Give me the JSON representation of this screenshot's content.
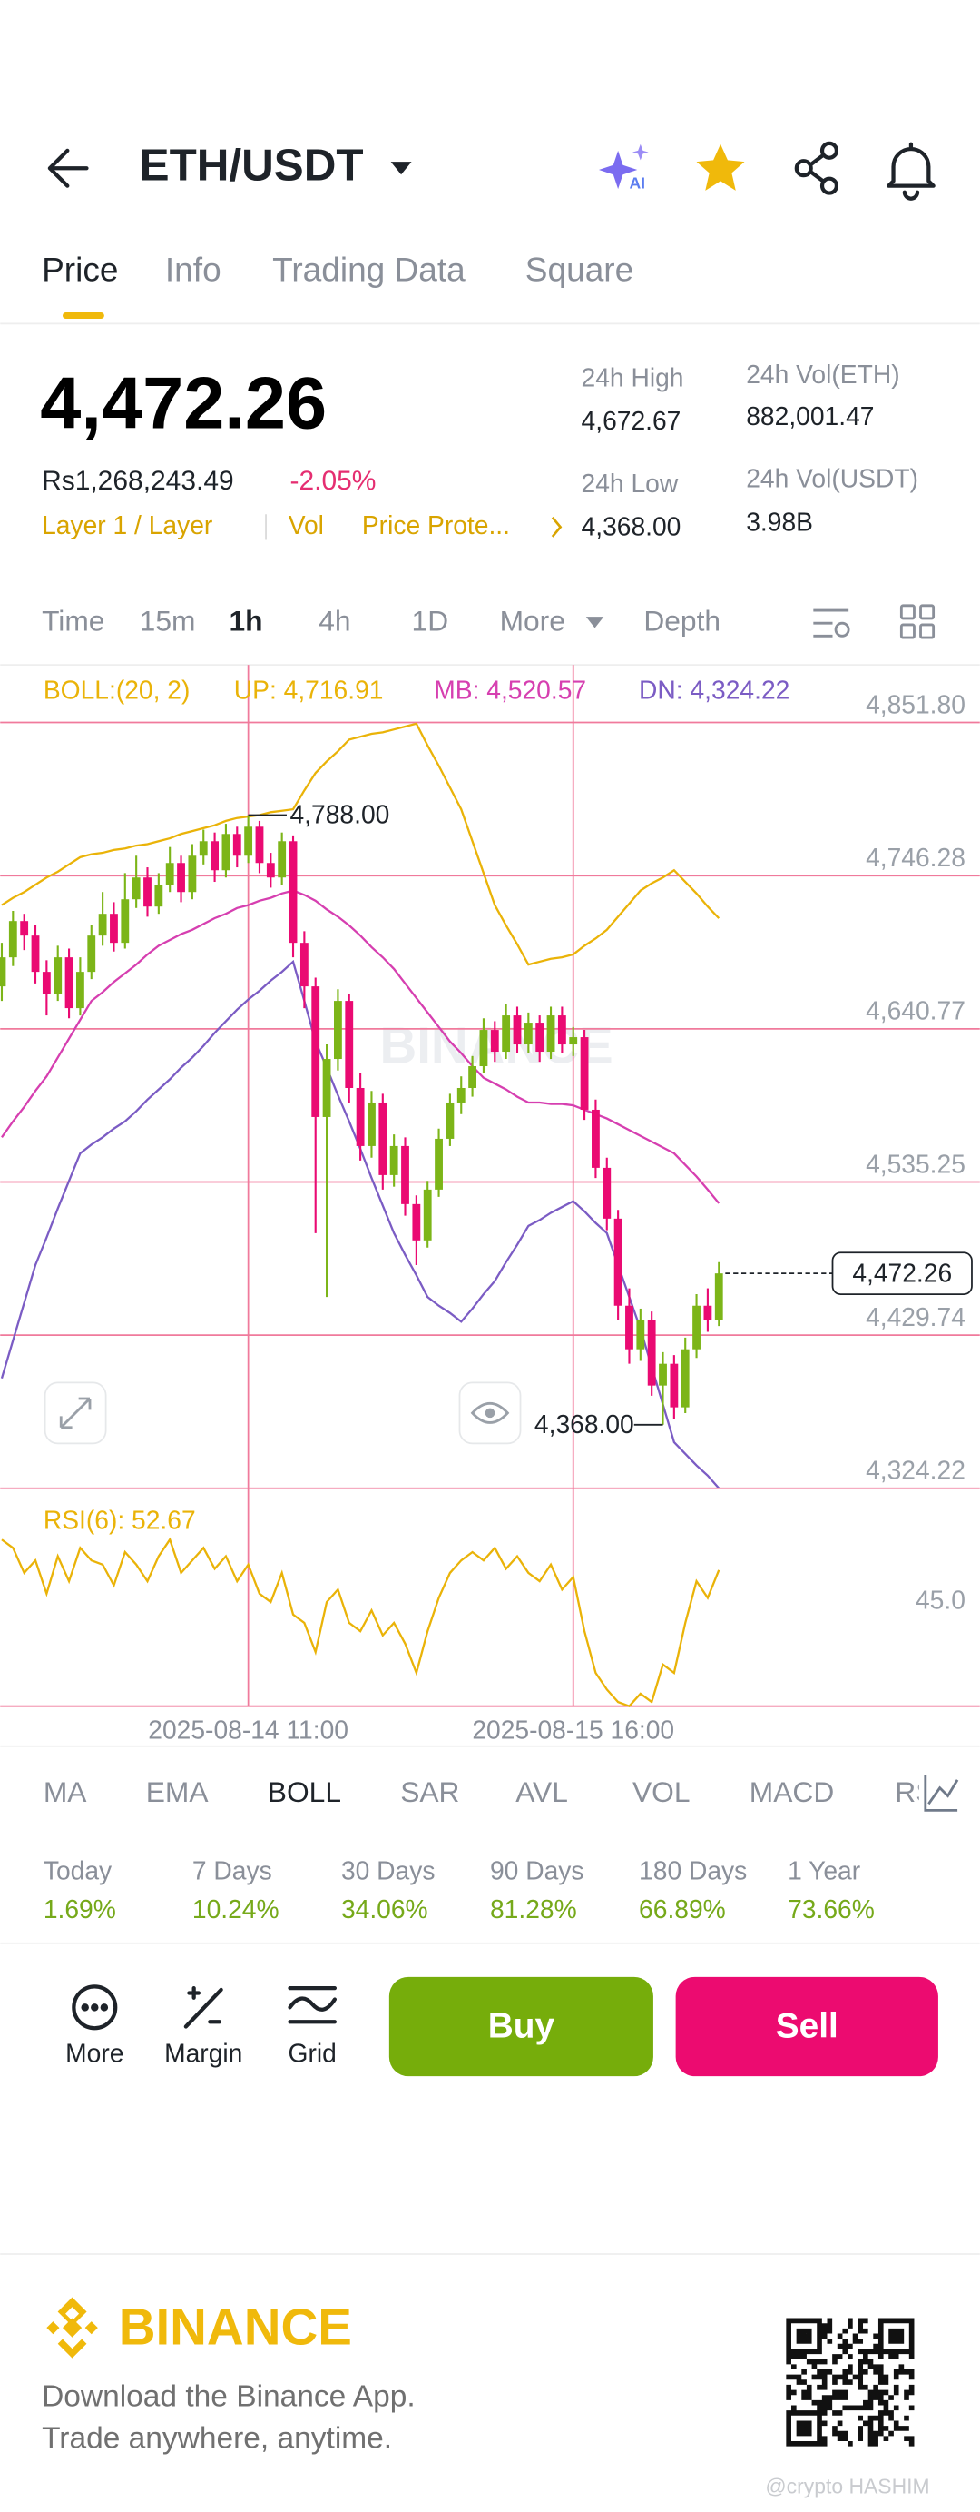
{
  "header": {
    "title": "ETH/USDT"
  },
  "tabs": {
    "items": [
      "Price",
      "Info",
      "Trading Data",
      "Square"
    ]
  },
  "ticker": {
    "last_price": "4,472.26",
    "fiat_price": "Rs1,268,243.49",
    "change": "-2.05%",
    "tags": [
      "Layer 1 / Layer",
      "Vol",
      "Price Prote..."
    ],
    "stats": [
      {
        "label": "24h High",
        "value": "4,672.67"
      },
      {
        "label": "24h Low",
        "value": "4,368.00"
      },
      {
        "label": "24h Vol(ETH)",
        "value": "882,001.47"
      },
      {
        "label": "24h Vol(USDT)",
        "value": "3.98B"
      }
    ]
  },
  "intervals": {
    "items": [
      "Time",
      "15m",
      "1h",
      "4h",
      "1D",
      "More",
      "Depth"
    ]
  },
  "chart_data": {
    "type": "candlestick",
    "indicator_label": "BOLL:(20, 2)",
    "watermark": "BINANCE",
    "up_color": "#7cb518",
    "down_color": "#ea0a72",
    "grid": true,
    "grid_color": "#f07a9c",
    "candles": [
      [
        4670,
        4700,
        4660,
        4690
      ],
      [
        4690,
        4722,
        4684,
        4715
      ],
      [
        4715,
        4720,
        4695,
        4705
      ],
      [
        4705,
        4712,
        4672,
        4680
      ],
      [
        4680,
        4688,
        4650,
        4665
      ],
      [
        4665,
        4698,
        4660,
        4690
      ],
      [
        4690,
        4696,
        4648,
        4655
      ],
      [
        4655,
        4690,
        4650,
        4680
      ],
      [
        4680,
        4712,
        4675,
        4705
      ],
      [
        4705,
        4735,
        4698,
        4720
      ],
      [
        4720,
        4728,
        4694,
        4700
      ],
      [
        4700,
        4748,
        4696,
        4730
      ],
      [
        4730,
        4760,
        4724,
        4745
      ],
      [
        4745,
        4752,
        4718,
        4725
      ],
      [
        4725,
        4748,
        4720,
        4740
      ],
      [
        4740,
        4766,
        4735,
        4755
      ],
      [
        4755,
        4760,
        4728,
        4735
      ],
      [
        4735,
        4768,
        4730,
        4760
      ],
      [
        4760,
        4778,
        4754,
        4770
      ],
      [
        4770,
        4776,
        4742,
        4750
      ],
      [
        4750,
        4782,
        4745,
        4775
      ],
      [
        4775,
        4780,
        4752,
        4760
      ],
      [
        4760,
        4788,
        4755,
        4780
      ],
      [
        4780,
        4784,
        4748,
        4755
      ],
      [
        4755,
        4762,
        4738,
        4745
      ],
      [
        4745,
        4776,
        4740,
        4770
      ],
      [
        4770,
        4774,
        4690,
        4700
      ],
      [
        4700,
        4708,
        4655,
        4670
      ],
      [
        4670,
        4676,
        4500,
        4580
      ],
      [
        4580,
        4630,
        4456,
        4620
      ],
      [
        4620,
        4668,
        4612,
        4660
      ],
      [
        4660,
        4665,
        4590,
        4600
      ],
      [
        4600,
        4610,
        4550,
        4560
      ],
      [
        4560,
        4598,
        4552,
        4590
      ],
      [
        4590,
        4596,
        4530,
        4540
      ],
      [
        4540,
        4568,
        4532,
        4560
      ],
      [
        4560,
        4566,
        4512,
        4520
      ],
      [
        4520,
        4526,
        4478,
        4495
      ],
      [
        4495,
        4536,
        4490,
        4530
      ],
      [
        4530,
        4572,
        4525,
        4565
      ],
      [
        4565,
        4596,
        4560,
        4590
      ],
      [
        4590,
        4608,
        4582,
        4600
      ],
      [
        4600,
        4622,
        4594,
        4615
      ],
      [
        4615,
        4648,
        4610,
        4640
      ],
      [
        4640,
        4646,
        4618,
        4625
      ],
      [
        4625,
        4658,
        4620,
        4650
      ],
      [
        4650,
        4656,
        4624,
        4630
      ],
      [
        4630,
        4652,
        4624,
        4645
      ],
      [
        4645,
        4650,
        4618,
        4625
      ],
      [
        4625,
        4656,
        4620,
        4650
      ],
      [
        4650,
        4656,
        4624,
        4630
      ],
      [
        4630,
        4642,
        4622,
        4635
      ],
      [
        4635,
        4640,
        4578,
        4585
      ],
      [
        4585,
        4592,
        4538,
        4545
      ],
      [
        4545,
        4552,
        4502,
        4510
      ],
      [
        4510,
        4516,
        4440,
        4450
      ],
      [
        4450,
        4462,
        4410,
        4420
      ],
      [
        4420,
        4448,
        4412,
        4440
      ],
      [
        4440,
        4446,
        4388,
        4395
      ],
      [
        4395,
        4418,
        4368,
        4410
      ],
      [
        4410,
        4416,
        4372,
        4380
      ],
      [
        4380,
        4428,
        4376,
        4420
      ],
      [
        4420,
        4458,
        4414,
        4450
      ],
      [
        4450,
        4462,
        4432,
        4440
      ],
      [
        4440,
        4480,
        4436,
        4472.26
      ]
    ],
    "series": [
      {
        "name": "UP: 4,716.91",
        "color": "#eab308",
        "values": [
          4726,
          4731,
          4735,
          4740,
          4745,
          4749,
          4754,
          4759,
          4761,
          4762,
          4764,
          4765,
          4767,
          4768,
          4770,
          4772,
          4775,
          4777,
          4779,
          4781,
          4784,
          4786,
          4787,
          4788,
          4790,
          4791,
          4792,
          4805,
          4817,
          4825,
          4832,
          4840,
          4842,
          4844,
          4845,
          4847,
          4849,
          4851,
          4836,
          4822,
          4807,
          4792,
          4770,
          4748,
          4726,
          4712,
          4699,
          4685,
          4687,
          4689,
          4690,
          4692,
          4698,
          4703,
          4709,
          4718,
          4727,
          4736,
          4741,
          4745,
          4750,
          4742,
          4734,
          4725,
          4716.91
        ]
      },
      {
        "name": "MB: 4,520.57",
        "color": "#d63fb0",
        "values": [
          4566,
          4577,
          4587,
          4598,
          4608,
          4621,
          4634,
          4647,
          4660,
          4666,
          4673,
          4679,
          4685,
          4692,
          4698,
          4702,
          4706,
          4709,
          4713,
          4717,
          4720,
          4724,
          4726,
          4729,
          4731,
          4734,
          4736,
          4733,
          4729,
          4723,
          4718,
          4712,
          4705,
          4697,
          4690,
          4682,
          4672,
          4662,
          4652,
          4642,
          4632,
          4624,
          4615,
          4607,
          4603,
          4599,
          4594,
          4590,
          4590,
          4589,
          4589,
          4588,
          4585,
          4582,
          4579,
          4575,
          4571,
          4567,
          4563,
          4559,
          4555,
          4547,
          4539,
          4530,
          4520.57
        ]
      },
      {
        "name": "DN: 4,324.22",
        "color": "#7b5cc4",
        "values": [
          4400,
          4426,
          4452,
          4478,
          4497,
          4517,
          4536,
          4555,
          4561,
          4566,
          4572,
          4577,
          4584,
          4592,
          4599,
          4606,
          4614,
          4621,
          4629,
          4638,
          4646,
          4654,
          4661,
          4667,
          4674,
          4680,
          4687,
          4660,
          4632,
          4614,
          4595,
          4577,
          4558,
          4538,
          4519,
          4500,
          4485,
          4471,
          4456,
          4450,
          4445,
          4439,
          4448,
          4458,
          4467,
          4480,
          4492,
          4505,
          4509,
          4514,
          4518,
          4522,
          4515,
          4507,
          4500,
          4478,
          4456,
          4434,
          4408,
          4382,
          4356,
          4348,
          4340,
          4333,
          4324.22
        ]
      }
    ],
    "ylim": [
      4324.22,
      4891.5
    ],
    "yticks": [
      {
        "value": 4851.8,
        "label": "4,851.80"
      },
      {
        "value": 4746.28,
        "label": "4,746.28"
      },
      {
        "value": 4640.77,
        "label": "4,640.77"
      },
      {
        "value": 4535.25,
        "label": "4,535.25"
      },
      {
        "value": 4429.74,
        "label": "4,429.74"
      },
      {
        "value": 4324.22,
        "label": "4,324.22"
      }
    ],
    "xlim": [
      0,
      64
    ],
    "xticks": [
      {
        "value": 22,
        "label": "2025-08-14 11:00"
      },
      {
        "value": 51,
        "label": "2025-08-15 16:00"
      }
    ],
    "annotations": [
      {
        "value": 4788,
        "label": "4,788.00"
      },
      {
        "value": 4368,
        "label": "4,368.00"
      }
    ],
    "last_price": {
      "value": 4472.26,
      "label": "4,472.26"
    },
    "rsi": {
      "name": "RSI(6): 52.67",
      "color": "#eab308",
      "ylim": [
        20,
        70
      ],
      "yticks": [
        {
          "value": 45,
          "label": "45.0"
        }
      ],
      "values": [
        60,
        58,
        52,
        55,
        47,
        56,
        50,
        58,
        55,
        54,
        49,
        57,
        54,
        50,
        56,
        60,
        52,
        55,
        58,
        53,
        56,
        50,
        54,
        47,
        45,
        52,
        42,
        40,
        33,
        45,
        48,
        40,
        38,
        43,
        37,
        40,
        35,
        28,
        38,
        46,
        52,
        55,
        57,
        55,
        58,
        53,
        56,
        52,
        50,
        54,
        48,
        51,
        38,
        28,
        24,
        21,
        20,
        23,
        21,
        30,
        28,
        40,
        50,
        46,
        52.67
      ]
    }
  },
  "indicators": {
    "items": [
      "MA",
      "EMA",
      "BOLL",
      "SAR",
      "AVL",
      "VOL",
      "MACD",
      "RSI"
    ]
  },
  "performance": {
    "labels": [
      "Today",
      "7 Days",
      "30 Days",
      "90 Days",
      "180 Days",
      "1 Year"
    ],
    "values": [
      "1.69%",
      "10.24%",
      "34.06%",
      "81.28%",
      "66.89%",
      "73.66%"
    ]
  },
  "actions": {
    "tools": [
      "More",
      "Margin",
      "Grid"
    ],
    "buy": "Buy",
    "sell": "Sell"
  },
  "footer": {
    "brand": "BINANCE",
    "line1": "Download the Binance App.",
    "line2": "Trade anywhere, anytime.",
    "credit": "@crypto HASHIM"
  }
}
